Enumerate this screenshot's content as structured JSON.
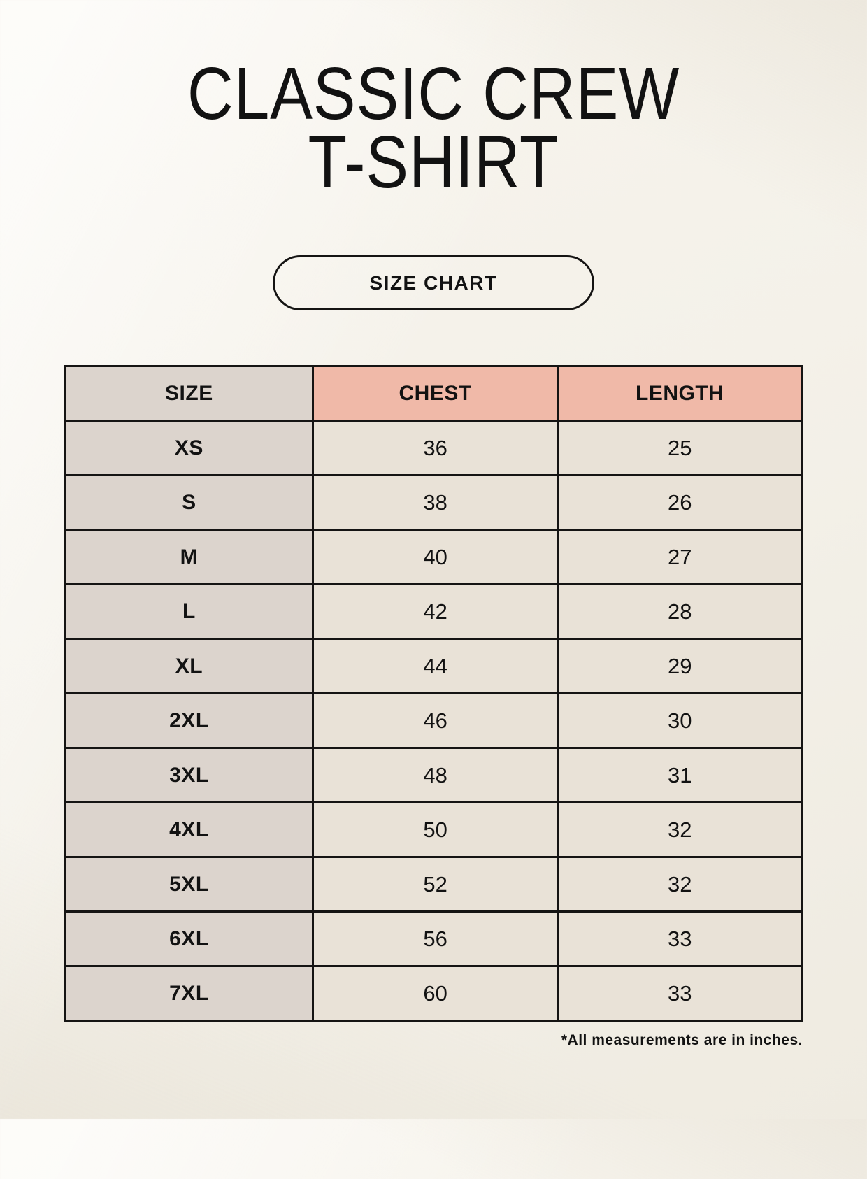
{
  "header": {
    "title_line1": "CLASSIC CREW",
    "title_line2": "T-SHIRT",
    "size_chart_button": "SIZE CHART"
  },
  "footnote": "*All measurements are in inches.",
  "colors": {
    "background": "#f6f3ec",
    "size_column_bg": "#dcd4cd",
    "measure_header_bg": "#f0b9a8",
    "cell_bg": "#e9e2d7",
    "border": "#151413",
    "text": "#121212"
  },
  "chart_data": {
    "type": "table",
    "title": "CLASSIC CREW T-SHIRT",
    "unit_note": "*All measurements are in inches.",
    "columns": [
      "SIZE",
      "CHEST",
      "LENGTH"
    ],
    "rows": [
      {
        "size": "XS",
        "chest": "36",
        "length": "25"
      },
      {
        "size": "S",
        "chest": "38",
        "length": "26"
      },
      {
        "size": "M",
        "chest": "40",
        "length": "27"
      },
      {
        "size": "L",
        "chest": "42",
        "length": "28"
      },
      {
        "size": "XL",
        "chest": "44",
        "length": "29"
      },
      {
        "size": "2XL",
        "chest": "46",
        "length": "30"
      },
      {
        "size": "3XL",
        "chest": "48",
        "length": "31"
      },
      {
        "size": "4XL",
        "chest": "50",
        "length": "32"
      },
      {
        "size": "5XL",
        "chest": "52",
        "length": "32"
      },
      {
        "size": "6XL",
        "chest": "56",
        "length": "33"
      },
      {
        "size": "7XL",
        "chest": "60",
        "length": "33"
      }
    ]
  }
}
